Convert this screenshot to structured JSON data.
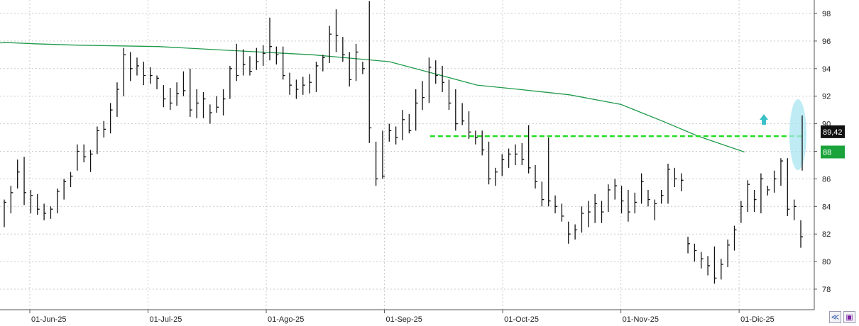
{
  "chart_data": {
    "type": "ohlc-bar",
    "x_labels": [
      "01-Jun-25",
      "01-Jul-25",
      "01-Ago-25",
      "01-Sep-25",
      "01-Oct-25",
      "01-Nov-25",
      "01-Dic-25"
    ],
    "x_label_offsets": [
      0,
      23,
      46,
      69,
      92,
      115,
      138
    ],
    "y_ticks": [
      "98",
      "96",
      "94",
      "92",
      "90",
      "88",
      "86",
      "84",
      "82",
      "80",
      "78"
    ],
    "y_tick_values": [
      98,
      96,
      94,
      92,
      90,
      88,
      86,
      84,
      82,
      80,
      78
    ],
    "ylim": [
      76.6,
      99.1
    ],
    "grid": true,
    "price_tag": "89,42",
    "price_tag_value": 89.42,
    "ma_tag": "88",
    "ma_tag_value": 87.95,
    "resistance_level": 89.1,
    "resistance_start_index": 116,
    "moving_average": [
      {
        "i": -4,
        "v": 95.7
      },
      {
        "i": 0,
        "v": 95.9
      },
      {
        "i": 6,
        "v": 95.8
      },
      {
        "i": 14,
        "v": 95.7
      },
      {
        "i": 30,
        "v": 95.6
      },
      {
        "i": 40,
        "v": 95.4
      },
      {
        "i": 50,
        "v": 95.2
      },
      {
        "i": 60,
        "v": 95.0
      },
      {
        "i": 75,
        "v": 94.5
      },
      {
        "i": 85,
        "v": 93.5
      },
      {
        "i": 92,
        "v": 92.8
      },
      {
        "i": 100,
        "v": 92.5
      },
      {
        "i": 110,
        "v": 92.1
      },
      {
        "i": 120,
        "v": 91.4
      },
      {
        "i": 128,
        "v": 90.2
      },
      {
        "i": 135,
        "v": 89.1
      },
      {
        "i": 144,
        "v": 87.95
      }
    ],
    "series": [
      {
        "values": [
          [
            84.5,
            82.5,
            84.3
          ],
          [
            85.5,
            83.5,
            85.0
          ],
          [
            87.4,
            85.3,
            86.5
          ],
          [
            87.6,
            84.1,
            85.0
          ],
          [
            85.2,
            83.5,
            84.8
          ],
          [
            84.9,
            83.4,
            83.8
          ],
          [
            84.2,
            83.0,
            83.5
          ],
          [
            84.0,
            83.1,
            83.8
          ],
          [
            85.3,
            83.5,
            85.1
          ],
          [
            86.0,
            84.5,
            85.8
          ],
          [
            86.5,
            85.4,
            86.2
          ],
          [
            88.5,
            86.6,
            88.0
          ],
          [
            88.5,
            87.2,
            87.6
          ],
          [
            88.1,
            86.5,
            87.8
          ],
          [
            89.8,
            87.8,
            89.5
          ],
          [
            90.2,
            89.0,
            89.6
          ],
          [
            91.5,
            89.3,
            91.0
          ],
          [
            93.0,
            90.5,
            92.5
          ],
          [
            95.5,
            92.0,
            95.0
          ],
          [
            95.2,
            93.1,
            94.0
          ],
          [
            94.8,
            93.5,
            94.2
          ],
          [
            94.5,
            92.8,
            93.5
          ],
          [
            94.1,
            92.9,
            93.5
          ],
          [
            93.5,
            92.5,
            93.3
          ],
          [
            92.8,
            91.2,
            91.8
          ],
          [
            92.6,
            91.0,
            91.5
          ],
          [
            93.0,
            91.3,
            92.2
          ],
          [
            93.8,
            92.0,
            92.4
          ],
          [
            94.0,
            90.5,
            91.0
          ],
          [
            92.5,
            90.4,
            91.5
          ],
          [
            92.3,
            90.4,
            91.8
          ],
          [
            91.4,
            90.0,
            90.8
          ],
          [
            92.0,
            90.8,
            91.2
          ],
          [
            92.5,
            90.6,
            91.8
          ],
          [
            94.2,
            91.8,
            94.0
          ],
          [
            95.8,
            93.1,
            93.5
          ],
          [
            95.4,
            93.5,
            94.3
          ],
          [
            94.9,
            93.5,
            93.8
          ],
          [
            95.5,
            93.9,
            94.5
          ],
          [
            95.7,
            94.2,
            95.1
          ],
          [
            97.7,
            94.6,
            95.6
          ],
          [
            95.6,
            94.3,
            95.0
          ],
          [
            95.6,
            93.2,
            93.5
          ],
          [
            93.7,
            92.1,
            92.8
          ],
          [
            93.2,
            91.8,
            92.5
          ],
          [
            93.4,
            92.1,
            92.8
          ],
          [
            93.6,
            92.2,
            93.0
          ],
          [
            94.5,
            92.3,
            94.2
          ],
          [
            95.0,
            93.8,
            94.8
          ],
          [
            97.1,
            94.4,
            96.5
          ],
          [
            98.3,
            95.2,
            96.4
          ],
          [
            96.3,
            94.5,
            95.0
          ],
          [
            95.2,
            92.7,
            93.2
          ],
          [
            95.8,
            93.1,
            95.2
          ],
          [
            94.5,
            93.6,
            94.0
          ],
          [
            98.9,
            88.6,
            89.7
          ],
          [
            88.7,
            85.5,
            86.0
          ],
          [
            89.5,
            86.0,
            86.2
          ],
          [
            90.0,
            88.7,
            89.5
          ],
          [
            89.8,
            88.5,
            89.0
          ],
          [
            91.0,
            88.8,
            90.3
          ],
          [
            90.7,
            89.3,
            89.5
          ],
          [
            92.5,
            89.5,
            91.5
          ],
          [
            93.1,
            91.0,
            91.9
          ],
          [
            94.8,
            91.5,
            94.1
          ],
          [
            94.6,
            92.9,
            93.5
          ],
          [
            94.2,
            92.3,
            93.0
          ],
          [
            93.2,
            91.0,
            91.5
          ],
          [
            92.5,
            89.5,
            90.0
          ],
          [
            91.5,
            89.9,
            90.2
          ],
          [
            90.9,
            88.9,
            89.4
          ],
          [
            89.5,
            88.5,
            89.0
          ],
          [
            89.5,
            87.7,
            88.1
          ],
          [
            88.7,
            85.6,
            86.0
          ],
          [
            86.8,
            85.5,
            86.5
          ],
          [
            87.8,
            86.2,
            87.4
          ],
          [
            88.2,
            86.8,
            87.8
          ],
          [
            88.5,
            87.0,
            87.8
          ],
          [
            88.6,
            87.0,
            87.4
          ],
          [
            89.9,
            86.4,
            86.8
          ],
          [
            87.0,
            85.3,
            85.8
          ],
          [
            85.8,
            84.0,
            84.5
          ],
          [
            89.0,
            84.0,
            84.4
          ],
          [
            84.8,
            83.5,
            84.0
          ],
          [
            84.2,
            82.9,
            83.3
          ],
          [
            82.9,
            81.3,
            82.0
          ],
          [
            82.7,
            81.6,
            82.3
          ],
          [
            84.0,
            82.1,
            83.5
          ],
          [
            84.4,
            82.5,
            83.6
          ],
          [
            84.9,
            82.8,
            84.2
          ],
          [
            84.4,
            82.8,
            83.6
          ],
          [
            85.6,
            83.6,
            85.2
          ],
          [
            86.0,
            84.5,
            85.5
          ],
          [
            85.5,
            83.5,
            84.4
          ],
          [
            85.2,
            82.9,
            83.6
          ],
          [
            85.0,
            83.5,
            84.3
          ],
          [
            86.4,
            84.2,
            85.8
          ],
          [
            85.2,
            84.0,
            84.5
          ],
          [
            84.5,
            83.0,
            84.2
          ],
          [
            85.2,
            84.2,
            84.8
          ],
          [
            87.1,
            84.2,
            86.7
          ],
          [
            86.8,
            85.4,
            86.0
          ],
          [
            86.4,
            85.1,
            85.9
          ],
          [
            81.8,
            80.6,
            81.3
          ],
          [
            81.3,
            80.0,
            80.8
          ],
          [
            80.7,
            79.5,
            80.2
          ],
          [
            80.4,
            79.0,
            79.7
          ],
          [
            81.1,
            78.4,
            78.8
          ],
          [
            80.2,
            78.7,
            79.8
          ],
          [
            81.6,
            79.6,
            81.2
          ],
          [
            82.6,
            80.8,
            82.3
          ],
          [
            84.4,
            82.8,
            84.0
          ],
          [
            85.9,
            83.6,
            85.6
          ],
          [
            85.2,
            83.6,
            84.5
          ],
          [
            86.4,
            83.5,
            86.0
          ],
          [
            85.5,
            84.8,
            85.2
          ],
          [
            86.6,
            85.0,
            86.0
          ],
          [
            87.5,
            85.5,
            87.3
          ],
          [
            87.5,
            83.3,
            83.8
          ],
          [
            84.5,
            83.0,
            84.0
          ],
          [
            83.0,
            81.0,
            81.8
          ]
        ]
      }
    ]
  },
  "controls": {
    "collapse_icon": "chevron-double-icon",
    "save_icon": "floppy-disk-icon"
  }
}
